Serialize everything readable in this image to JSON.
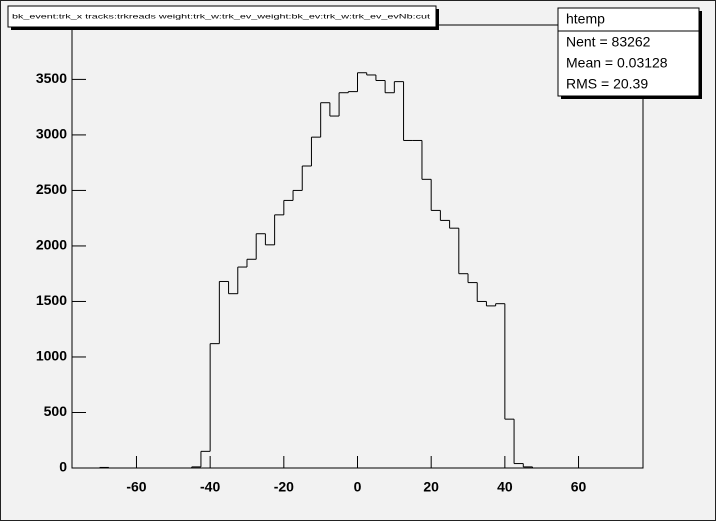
{
  "chart_data": {
    "type": "histogram",
    "title": "bk_event:trk_x tracks:trkreads weight:trk_w:trk_ev_weight:bk_ev:trk_w:trk_ev_evNb:cut",
    "stats": {
      "name": "htemp",
      "lines": [
        "Nent = 83262",
        "Mean  = 0.03128",
        "RMS   =  20.39"
      ]
    },
    "bins": [
      -77.5,
      -75,
      -72.5,
      -70,
      -67.5,
      -65,
      -62.5,
      -60,
      -57.5,
      -55,
      -52.5,
      -50,
      -47.5,
      -45,
      -42.5,
      -40,
      -37.5,
      -35,
      -32.5,
      -30,
      -27.5,
      -25,
      -22.5,
      -20,
      -17.5,
      -15,
      -12.5,
      -10,
      -7.5,
      -5,
      -2.5,
      0,
      2.5,
      5,
      7.5,
      10,
      12.5,
      15,
      17.5,
      20,
      22.5,
      25,
      27.5,
      30,
      32.5,
      35,
      37.5,
      40,
      42.5,
      45,
      47.5,
      50,
      52.5,
      55,
      57.5,
      60,
      62.5,
      65,
      67.5,
      70,
      72.5,
      75,
      77.5
    ],
    "values": [
      0,
      0,
      0,
      5,
      0,
      0,
      0,
      0,
      0,
      0,
      0,
      0,
      0,
      10,
      150,
      1120,
      1680,
      1570,
      1810,
      1880,
      2110,
      2010,
      2280,
      2410,
      2500,
      2720,
      2980,
      3290,
      3170,
      3380,
      3390,
      3560,
      3540,
      3490,
      3380,
      3480,
      2950,
      2950,
      2600,
      2320,
      2230,
      2160,
      1750,
      1670,
      1500,
      1460,
      1480,
      440,
      40,
      10,
      0,
      0,
      0,
      0,
      0,
      0,
      0,
      0,
      0,
      0,
      0,
      0
    ],
    "color": "#000000",
    "xlim": [
      -77.5,
      77.5
    ],
    "ylim": [
      0,
      3990
    ],
    "xticks": [
      -60,
      -40,
      -20,
      0,
      20,
      40,
      60
    ],
    "yticks": [
      0,
      500,
      1000,
      1500,
      2000,
      2500,
      3000,
      3500
    ]
  }
}
